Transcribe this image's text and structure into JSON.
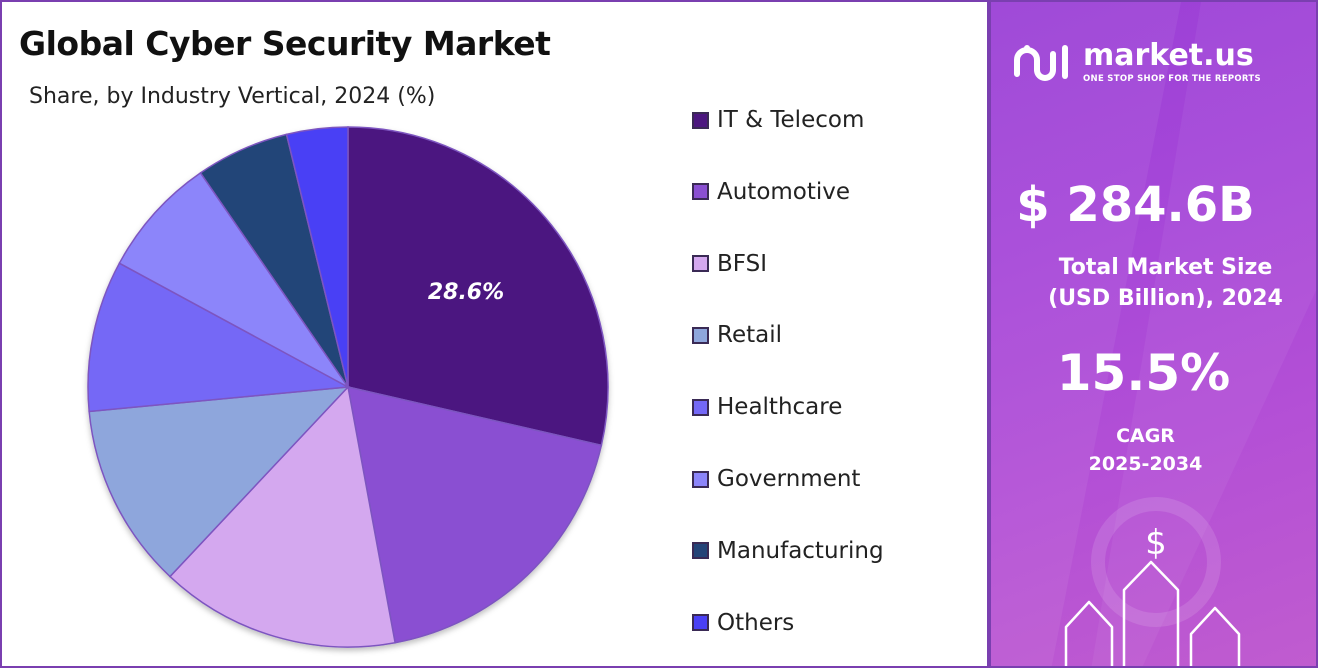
{
  "chart_data": {
    "type": "pie",
    "title": "Global Cyber Security Market",
    "subtitle": "Share, by Industry Vertical, 2024 (%)",
    "legend_position": "right",
    "categories": [
      "IT & Telecom",
      "Automotive",
      "BFSI",
      "Retail",
      "Healthcare",
      "Government",
      "Manufacturing",
      "Others"
    ],
    "values": [
      28.6,
      18.5,
      14.9,
      11.5,
      9.4,
      7.5,
      5.8,
      3.8
    ],
    "colors": [
      "#4c1780",
      "#8a4fd2",
      "#d4a8ef",
      "#8ea6dc",
      "#7468f6",
      "#8c85fa",
      "#244478",
      "#4a40f5"
    ],
    "data_labels": [
      "28.6%",
      "",
      "",
      "",
      "",
      "",
      "",
      ""
    ],
    "start_angle_deg": 0,
    "direction": "clockwise"
  },
  "brand": {
    "name": "market.us",
    "tagline": "ONE STOP SHOP FOR THE REPORTS"
  },
  "stats": {
    "market_size_value": "$ 284.6B",
    "market_size_label_line1": "Total Market Size",
    "market_size_label_line2": "(USD Billion), 2024",
    "cagr_value": "15.5%",
    "cagr_label_line1": "CAGR",
    "cagr_label_line2": "2025-2034"
  },
  "icons": {
    "dollar": "$",
    "growth_arrows": "up-arrows-icon"
  },
  "theme": {
    "accent_purple": "#9a3fd6",
    "border_purple": "#7a3fb0"
  }
}
